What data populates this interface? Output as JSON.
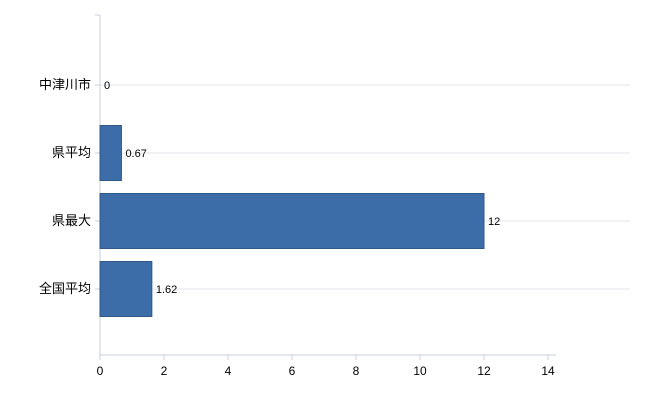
{
  "chart_data": {
    "type": "bar",
    "orientation": "horizontal",
    "title": "",
    "categories": [
      "中津川市",
      "県平均",
      "県最大",
      "全国平均"
    ],
    "values": [
      0,
      0.67,
      12,
      1.62
    ],
    "value_labels": [
      "0",
      "0.67",
      "12",
      "1.62"
    ],
    "xlim": [
      0,
      14
    ],
    "xticks": [
      0,
      2,
      4,
      6,
      8,
      10,
      12,
      14
    ],
    "xtick_labels": [
      "0",
      "2",
      "4",
      "6",
      "8",
      "10",
      "12",
      "14"
    ],
    "grid": true,
    "legend": "none",
    "colors": {
      "bar_fill": "#3d6da8",
      "bar_stroke": "#2f5886",
      "axis_line": "#c9d1dc",
      "grid_line": "#e2e6ec",
      "tick_text": "#000000",
      "label_text": "#000000",
      "background": "#ffffff"
    }
  }
}
